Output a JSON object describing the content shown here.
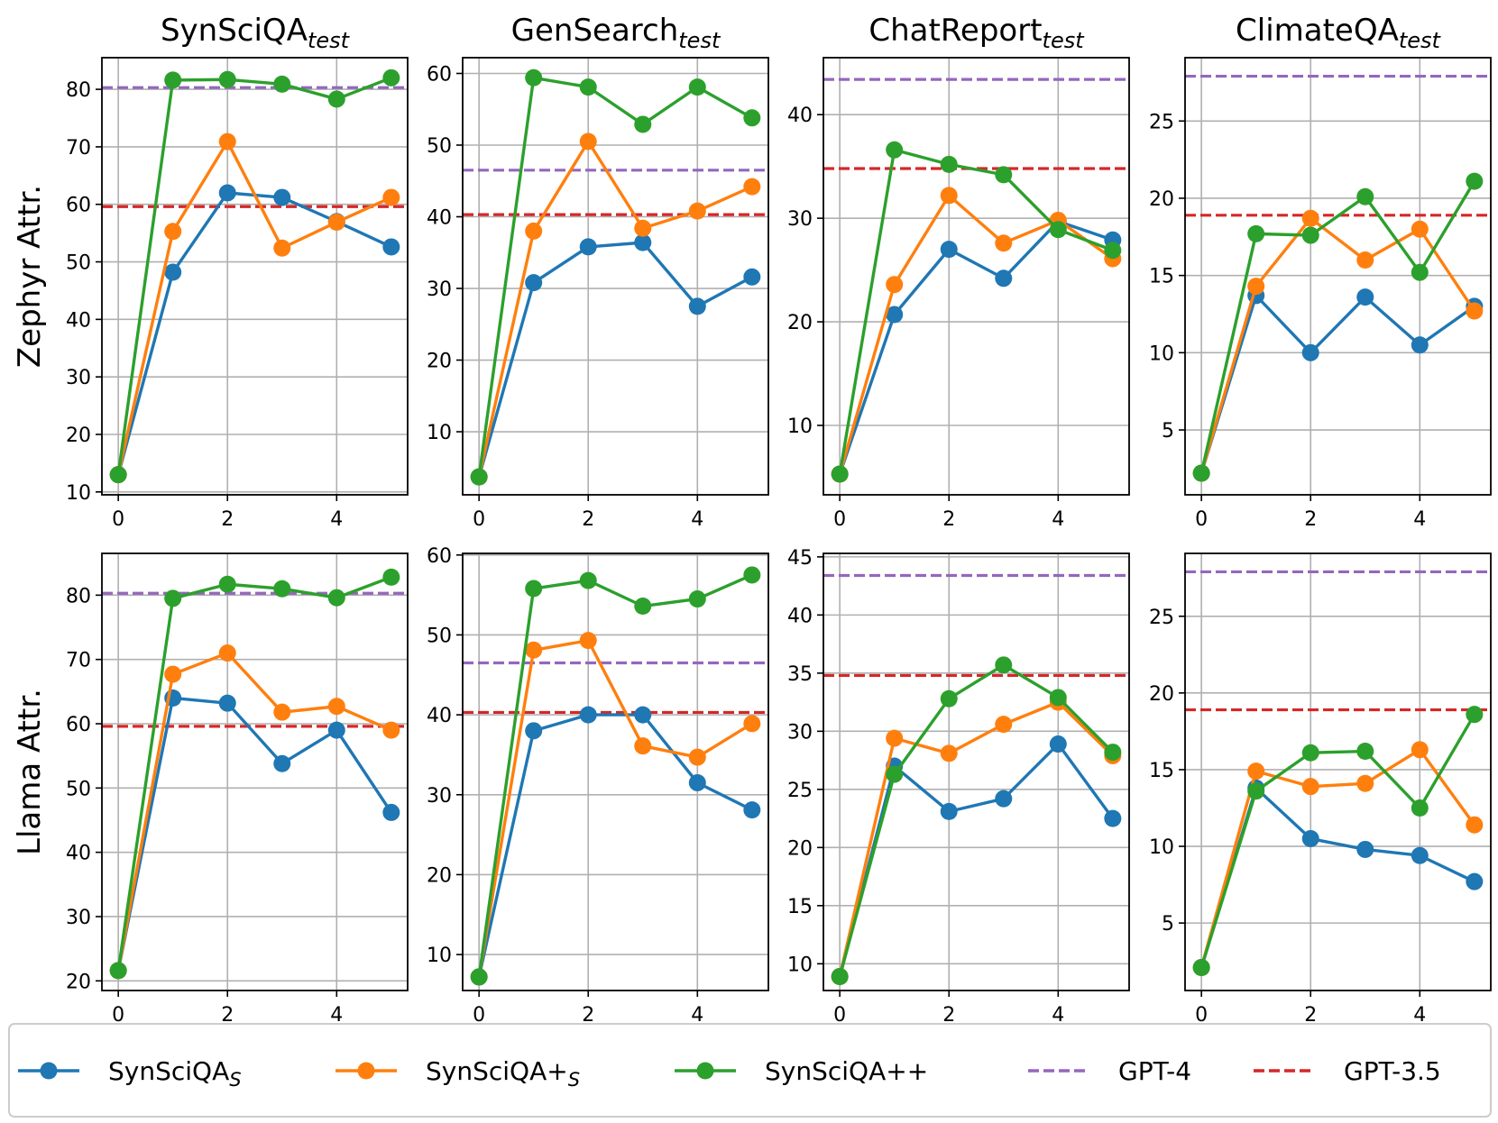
{
  "chart_data": {
    "type": "line",
    "x": [
      0,
      1,
      2,
      3,
      4,
      5
    ],
    "xticks": [
      0,
      2,
      4
    ],
    "grid": true,
    "legend_position": "bottom",
    "columns": [
      {
        "title": "SynSciQA",
        "subscript": "test"
      },
      {
        "title": "GenSearch",
        "subscript": "test"
      },
      {
        "title": "ChatReport",
        "subscript": "test"
      },
      {
        "title": "ClimateQA",
        "subscript": "test"
      }
    ],
    "rows": [
      {
        "ylabel": "Zephyr Attr."
      },
      {
        "ylabel": "Llama Attr."
      }
    ],
    "legend": [
      {
        "key": "s1",
        "label": "SynSciQA",
        "subscript": "S",
        "color": "#1f77b4",
        "style": "line-marker"
      },
      {
        "key": "s2",
        "label": "SynSciQA+",
        "subscript": "S",
        "color": "#ff7f0e",
        "style": "line-marker"
      },
      {
        "key": "s3",
        "label": "SynSciQA++",
        "subscript": "",
        "color": "#2ca02c",
        "style": "line-marker"
      },
      {
        "key": "gpt4",
        "label": "GPT-4",
        "subscript": "",
        "color": "#9467bd",
        "style": "dashed"
      },
      {
        "key": "gpt35",
        "label": "GPT-3.5",
        "subscript": "",
        "color": "#d62728",
        "style": "dashed"
      }
    ],
    "panels": [
      {
        "row": 0,
        "col": 0,
        "ylim": [
          9.5,
          85.5
        ],
        "yticks": [
          10,
          20,
          30,
          40,
          50,
          60,
          70,
          80
        ],
        "series": {
          "s1": [
            13,
            48.2,
            62,
            61.2,
            57,
            52.6
          ],
          "s2": [
            13,
            55.3,
            70.9,
            52.4,
            56.9,
            61.2
          ],
          "s3": [
            13,
            81.6,
            81.7,
            80.9,
            78.3,
            82
          ]
        },
        "hlines": {
          "gpt4": 80.3,
          "gpt35": 59.6
        }
      },
      {
        "row": 0,
        "col": 1,
        "ylim": [
          1.2,
          62.2
        ],
        "yticks": [
          10,
          20,
          30,
          40,
          50,
          60
        ],
        "series": {
          "s1": [
            3.7,
            30.8,
            35.8,
            36.4,
            27.5,
            31.6
          ],
          "s2": [
            3.7,
            38,
            50.5,
            38.4,
            40.8,
            44.2
          ],
          "s3": [
            3.7,
            59.4,
            58.1,
            52.9,
            58.1,
            53.8
          ]
        },
        "hlines": {
          "gpt4": 46.5,
          "gpt35": 40.3
        }
      },
      {
        "row": 0,
        "col": 2,
        "ylim": [
          3.3,
          45.5
        ],
        "yticks": [
          10,
          20,
          30,
          40
        ],
        "series": {
          "s1": [
            5.3,
            20.7,
            27,
            24.2,
            29.7,
            27.9
          ],
          "s2": [
            5.3,
            23.6,
            32.2,
            27.6,
            29.8,
            26.1
          ],
          "s3": [
            5.3,
            36.6,
            35.2,
            34.2,
            28.9,
            26.9
          ]
        },
        "hlines": {
          "gpt4": 43.4,
          "gpt35": 34.8
        }
      },
      {
        "row": 0,
        "col": 3,
        "ylim": [
          0.8,
          29.1
        ],
        "yticks": [
          5,
          10,
          15,
          20,
          25
        ],
        "series": {
          "s1": [
            2.2,
            13.7,
            10,
            13.6,
            10.5,
            13
          ],
          "s2": [
            2.2,
            14.3,
            18.7,
            16,
            18,
            12.7
          ],
          "s3": [
            2.2,
            17.7,
            17.6,
            20.1,
            15.2,
            21.1
          ]
        },
        "hlines": {
          "gpt4": 27.9,
          "gpt35": 18.9
        }
      },
      {
        "row": 1,
        "col": 0,
        "ylim": [
          18.5,
          86.5
        ],
        "yticks": [
          20,
          30,
          40,
          50,
          60,
          70,
          80
        ],
        "series": {
          "s1": [
            21.6,
            64,
            63.2,
            53.8,
            59,
            46.2
          ],
          "s2": [
            21.6,
            67.7,
            71,
            61.8,
            62.7,
            59
          ],
          "s3": [
            21.6,
            79.5,
            81.7,
            81,
            79.6,
            82.8
          ]
        },
        "hlines": {
          "gpt4": 80.3,
          "gpt35": 59.6
        }
      },
      {
        "row": 1,
        "col": 1,
        "ylim": [
          5.5,
          60.2
        ],
        "yticks": [
          10,
          20,
          30,
          40,
          50,
          60
        ],
        "series": {
          "s1": [
            7.2,
            38,
            40,
            40,
            31.5,
            28.1
          ],
          "s2": [
            7.2,
            48.1,
            49.3,
            36.1,
            34.7,
            38.9
          ],
          "s3": [
            7.2,
            55.8,
            56.8,
            53.6,
            54.5,
            57.5
          ]
        },
        "hlines": {
          "gpt4": 46.5,
          "gpt35": 40.3
        }
      },
      {
        "row": 1,
        "col": 2,
        "ylim": [
          7.7,
          45.3
        ],
        "yticks": [
          10,
          15,
          20,
          25,
          30,
          35,
          40,
          45
        ],
        "series": {
          "s1": [
            8.9,
            27,
            23.1,
            24.2,
            28.9,
            22.5
          ],
          "s2": [
            8.9,
            29.4,
            28.1,
            30.6,
            32.5,
            27.9
          ],
          "s3": [
            8.9,
            26.3,
            32.8,
            35.7,
            32.9,
            28.2
          ]
        },
        "hlines": {
          "gpt4": 43.4,
          "gpt35": 34.8
        }
      },
      {
        "row": 1,
        "col": 3,
        "ylim": [
          0.6,
          29.1
        ],
        "yticks": [
          5,
          10,
          15,
          20,
          25
        ],
        "series": {
          "s1": [
            2.1,
            13.8,
            10.5,
            9.8,
            9.4,
            7.7
          ],
          "s2": [
            2.1,
            14.9,
            13.9,
            14.1,
            16.3,
            11.4
          ],
          "s3": [
            2.1,
            13.6,
            16.1,
            16.2,
            12.5,
            18.6
          ]
        },
        "hlines": {
          "gpt4": 27.9,
          "gpt35": 18.9
        }
      }
    ]
  }
}
